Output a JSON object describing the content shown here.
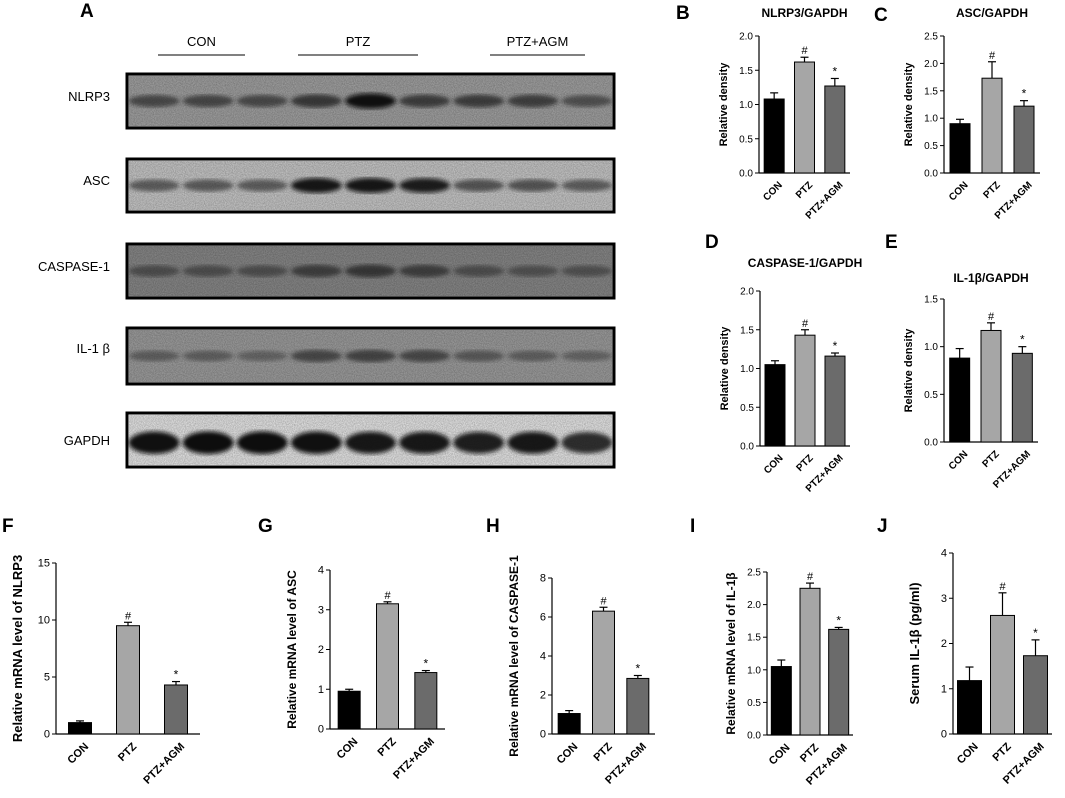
{
  "panel_letters": [
    "A",
    "B",
    "C",
    "D",
    "E",
    "F",
    "G",
    "H",
    "I",
    "J"
  ],
  "blot": {
    "groups": [
      "CON",
      "PTZ",
      "PTZ+AGM"
    ],
    "rows": [
      {
        "label": "NLRP3",
        "intensity": [
          0.45,
          0.48,
          0.45,
          0.6,
          0.9,
          0.55,
          0.55,
          0.52,
          0.4
        ]
      },
      {
        "label": "ASC",
        "intensity": [
          0.4,
          0.42,
          0.4,
          0.85,
          0.85,
          0.8,
          0.45,
          0.45,
          0.4
        ]
      },
      {
        "label": "CASPASE-1",
        "intensity": [
          0.35,
          0.35,
          0.35,
          0.5,
          0.55,
          0.5,
          0.35,
          0.3,
          0.3
        ]
      },
      {
        "label": "IL-1 β",
        "intensity": [
          0.25,
          0.25,
          0.2,
          0.45,
          0.5,
          0.45,
          0.3,
          0.25,
          0.2
        ]
      },
      {
        "label": "GAPDH",
        "intensity": [
          0.9,
          0.95,
          0.95,
          0.9,
          0.85,
          0.85,
          0.8,
          0.85,
          0.75
        ]
      }
    ]
  },
  "colors": {
    "CON": "#000000",
    "PTZ": "#a6a6a6",
    "PTZ+AGM": "#6b6b6b"
  },
  "chart_data": [
    {
      "id": "B",
      "type": "bar",
      "title": "NLRP3/GAPDH",
      "ylabel": "Relative density",
      "categories": [
        "CON",
        "PTZ",
        "PTZ+AGM"
      ],
      "values": [
        1.08,
        1.62,
        1.27
      ],
      "errors": [
        0.09,
        0.07,
        0.11
      ],
      "annotations": [
        "",
        "#",
        "*"
      ],
      "ylim": [
        0,
        2.0
      ],
      "yticks": [
        "0.0",
        "0.5",
        "1.0",
        "1.5",
        "2.0"
      ]
    },
    {
      "id": "C",
      "type": "bar",
      "title": "ASC/GAPDH",
      "ylabel": "Relative density",
      "categories": [
        "CON",
        "PTZ",
        "PTZ+AGM"
      ],
      "values": [
        0.9,
        1.73,
        1.22
      ],
      "errors": [
        0.08,
        0.3,
        0.1
      ],
      "annotations": [
        "",
        "#",
        "*"
      ],
      "ylim": [
        0,
        2.5
      ],
      "yticks": [
        "0.0",
        "0.5",
        "1.0",
        "1.5",
        "2.0",
        "2.5"
      ]
    },
    {
      "id": "D",
      "type": "bar",
      "title": "CASPASE-1/GAPDH",
      "ylabel": "Relative density",
      "categories": [
        "CON",
        "PTZ",
        "PTZ+AGM"
      ],
      "values": [
        1.05,
        1.43,
        1.16
      ],
      "errors": [
        0.05,
        0.07,
        0.04
      ],
      "annotations": [
        "",
        "#",
        "*"
      ],
      "ylim": [
        0,
        2.0
      ],
      "yticks": [
        "0.0",
        "0.5",
        "1.0",
        "1.5",
        "2.0"
      ]
    },
    {
      "id": "E",
      "type": "bar",
      "title": "IL-1β/GAPDH",
      "ylabel": "Relative density",
      "categories": [
        "CON",
        "PTZ",
        "PTZ+AGM"
      ],
      "values": [
        0.88,
        1.17,
        0.93
      ],
      "errors": [
        0.1,
        0.08,
        0.07
      ],
      "annotations": [
        "",
        "#",
        "*"
      ],
      "ylim": [
        0,
        1.5
      ],
      "yticks": [
        "0.0",
        "0.5",
        "1.0",
        "1.5"
      ]
    },
    {
      "id": "F",
      "type": "bar",
      "title": "",
      "ylabel": "Relative mRNA level of NLRP3",
      "categories": [
        "CON",
        "PTZ",
        "PTZ+AGM"
      ],
      "values": [
        1.0,
        9.5,
        4.3
      ],
      "errors": [
        0.15,
        0.3,
        0.3
      ],
      "annotations": [
        "",
        "#",
        "*"
      ],
      "ylim": [
        0,
        15
      ],
      "yticks": [
        "0",
        "5",
        "10",
        "15"
      ]
    },
    {
      "id": "G",
      "type": "bar",
      "title": "",
      "ylabel": "Relative mRNA level of ASC",
      "categories": [
        "CON",
        "PTZ",
        "PTZ+AGM"
      ],
      "values": [
        0.95,
        3.15,
        1.42
      ],
      "errors": [
        0.05,
        0.05,
        0.05
      ],
      "annotations": [
        "",
        "#",
        "*"
      ],
      "ylim": [
        0,
        4
      ],
      "yticks": [
        "0",
        "1",
        "2",
        "3",
        "4"
      ]
    },
    {
      "id": "H",
      "type": "bar",
      "title": "",
      "ylabel": "Relative mRNA level of CASPASE-1",
      "categories": [
        "CON",
        "PTZ",
        "PTZ+AGM"
      ],
      "values": [
        1.05,
        6.3,
        2.85
      ],
      "errors": [
        0.15,
        0.2,
        0.15
      ],
      "annotations": [
        "",
        "#",
        "*"
      ],
      "ylim": [
        0,
        8
      ],
      "yticks": [
        "0",
        "2",
        "4",
        "6",
        "8"
      ]
    },
    {
      "id": "I",
      "type": "bar",
      "title": "",
      "ylabel": "Relative mRNA level of IL-1β",
      "categories": [
        "CON",
        "PTZ",
        "PTZ+AGM"
      ],
      "values": [
        1.05,
        2.25,
        1.62
      ],
      "errors": [
        0.1,
        0.08,
        0.03
      ],
      "annotations": [
        "",
        "#",
        "*"
      ],
      "ylim": [
        0,
        2.5
      ],
      "yticks": [
        "0.0",
        "0.5",
        "1.0",
        "1.5",
        "2.0",
        "2.5"
      ]
    },
    {
      "id": "J",
      "type": "bar",
      "title": "",
      "ylabel": "Serum IL-1β (pg/ml)",
      "categories": [
        "CON",
        "PTZ",
        "PTZ+AGM"
      ],
      "values": [
        1.18,
        2.62,
        1.73
      ],
      "errors": [
        0.3,
        0.5,
        0.35
      ],
      "annotations": [
        "",
        "#",
        "*"
      ],
      "ylim": [
        0,
        4
      ],
      "yticks": [
        "0",
        "1",
        "2",
        "3",
        "4"
      ]
    }
  ]
}
